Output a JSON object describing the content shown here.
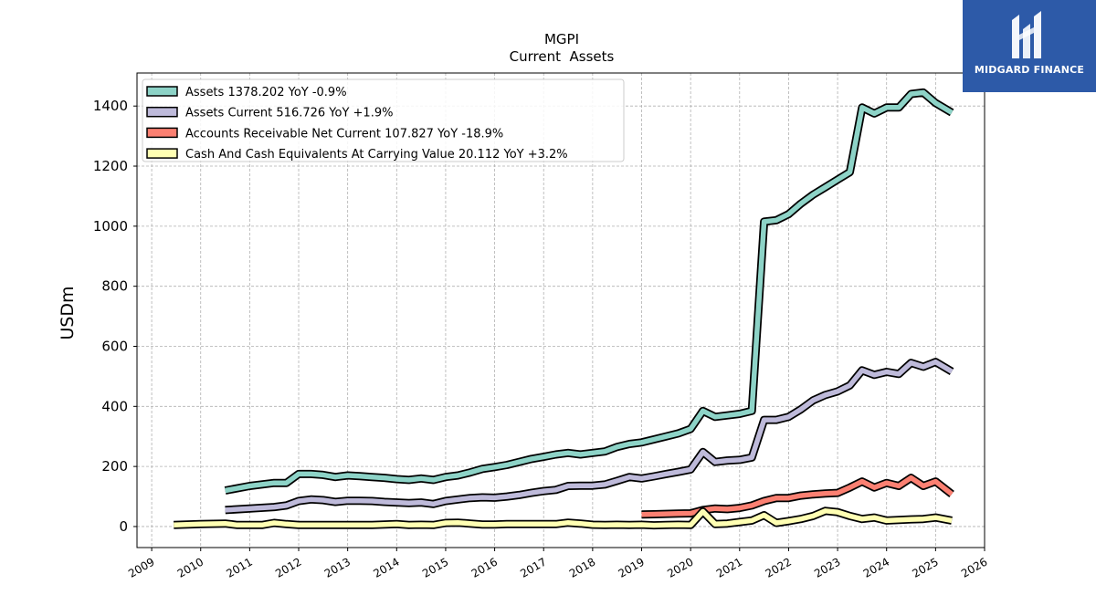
{
  "brand": {
    "name": "MIDGARD FINANCE",
    "color": "#2d5aa8",
    "icon": "midgard-logo-icon"
  },
  "chart_data": {
    "type": "line",
    "title": "MGPI",
    "subtitle": "Current  Assets",
    "xlabel": "",
    "ylabel": "USDm",
    "xlim": [
      2008.7,
      2026.0
    ],
    "ylim": [
      -70,
      1510
    ],
    "x_ticks": [
      "2009",
      "2010",
      "2011",
      "2012",
      "2013",
      "2014",
      "2015",
      "2016",
      "2017",
      "2018",
      "2019",
      "2020",
      "2021",
      "2022",
      "2023",
      "2024",
      "2025",
      "2026"
    ],
    "y_ticks": [
      0,
      200,
      400,
      600,
      800,
      1000,
      1200,
      1400
    ],
    "grid": true,
    "legend_position": "top-left",
    "series": [
      {
        "name": "Assets  1378.202 YoY -0.9%",
        "color": "#8dd3c7",
        "x": [
          2010.5,
          2011.0,
          2011.5,
          2011.75,
          2012.0,
          2012.25,
          2012.5,
          2012.75,
          2013.0,
          2013.25,
          2013.5,
          2013.75,
          2014.0,
          2014.25,
          2014.5,
          2014.75,
          2015.0,
          2015.25,
          2015.5,
          2015.75,
          2016.0,
          2016.25,
          2016.5,
          2016.75,
          2017.0,
          2017.25,
          2017.5,
          2017.75,
          2018.0,
          2018.25,
          2018.5,
          2018.75,
          2019.0,
          2019.25,
          2019.5,
          2019.75,
          2020.0,
          2020.25,
          2020.5,
          2020.75,
          2021.0,
          2021.25,
          2021.5,
          2021.75,
          2022.0,
          2022.25,
          2022.5,
          2022.75,
          2023.0,
          2023.25,
          2023.5,
          2023.75,
          2024.0,
          2024.25,
          2024.5,
          2024.75,
          2025.0,
          2025.33
        ],
        "y": [
          120,
          135,
          145,
          145,
          175,
          175,
          172,
          165,
          170,
          168,
          165,
          162,
          158,
          155,
          160,
          155,
          165,
          170,
          180,
          192,
          198,
          205,
          215,
          225,
          232,
          240,
          245,
          240,
          245,
          250,
          265,
          275,
          280,
          290,
          300,
          310,
          325,
          385,
          365,
          370,
          375,
          385,
          1015,
          1020,
          1040,
          1075,
          1105,
          1130,
          1155,
          1180,
          1395,
          1375,
          1395,
          1395,
          1440,
          1445,
          1410,
          1378
        ]
      },
      {
        "name": "Assets Current  516.726 YoY +1.9%",
        "color": "#bebada",
        "x": [
          2010.5,
          2011.0,
          2011.5,
          2011.75,
          2012.0,
          2012.25,
          2012.5,
          2012.75,
          2013.0,
          2013.25,
          2013.5,
          2013.75,
          2014.0,
          2014.25,
          2014.5,
          2014.75,
          2015.0,
          2015.25,
          2015.5,
          2015.75,
          2016.0,
          2016.25,
          2016.5,
          2016.75,
          2017.0,
          2017.25,
          2017.5,
          2017.75,
          2018.0,
          2018.25,
          2018.5,
          2018.75,
          2019.0,
          2019.25,
          2019.5,
          2019.75,
          2020.0,
          2020.25,
          2020.5,
          2020.75,
          2021.0,
          2021.25,
          2021.5,
          2021.75,
          2022.0,
          2022.25,
          2022.5,
          2022.75,
          2023.0,
          2023.25,
          2023.5,
          2023.75,
          2024.0,
          2024.25,
          2024.5,
          2024.75,
          2025.0,
          2025.33
        ],
        "y": [
          55,
          60,
          65,
          70,
          85,
          90,
          88,
          82,
          86,
          86,
          85,
          82,
          80,
          78,
          80,
          75,
          85,
          90,
          95,
          97,
          96,
          100,
          105,
          112,
          118,
          122,
          135,
          136,
          136,
          140,
          152,
          165,
          160,
          167,
          175,
          182,
          190,
          248,
          215,
          220,
          222,
          230,
          355,
          355,
          365,
          390,
          420,
          438,
          450,
          470,
          520,
          505,
          515,
          508,
          545,
          532,
          548,
          516
        ]
      },
      {
        "name": "Accounts Receivable Net Current  107.827 YoY -18.9%",
        "color": "#fb8072",
        "x": [
          2019.0,
          2019.25,
          2019.5,
          2019.75,
          2020.0,
          2020.25,
          2020.5,
          2020.75,
          2021.0,
          2021.25,
          2021.5,
          2021.75,
          2022.0,
          2022.25,
          2022.5,
          2022.75,
          2023.0,
          2023.25,
          2023.5,
          2023.75,
          2024.0,
          2024.25,
          2024.5,
          2024.75,
          2025.0,
          2025.33
        ],
        "y": [
          40,
          41,
          42,
          43,
          44,
          55,
          60,
          58,
          62,
          70,
          85,
          95,
          95,
          103,
          107,
          110,
          112,
          130,
          150,
          130,
          145,
          135,
          162,
          135,
          150,
          108
        ]
      },
      {
        "name": "Cash And Cash Equivalents At Carrying Value  20.112 YoY +3.2%",
        "color": "#ffffb3",
        "x": [
          2009.45,
          2010.0,
          2010.5,
          2010.75,
          2011.0,
          2011.25,
          2011.5,
          2011.75,
          2012.0,
          2012.5,
          2013.0,
          2013.5,
          2014.0,
          2014.25,
          2014.5,
          2014.75,
          2015.0,
          2015.25,
          2015.5,
          2015.75,
          2016.0,
          2016.25,
          2016.5,
          2016.75,
          2017.0,
          2017.25,
          2017.5,
          2017.75,
          2018.0,
          2018.25,
          2018.5,
          2018.75,
          2019.0,
          2019.25,
          2019.5,
          2019.75,
          2020.0,
          2020.25,
          2020.5,
          2020.75,
          2021.0,
          2021.25,
          2021.5,
          2021.75,
          2022.0,
          2022.25,
          2022.5,
          2022.75,
          2023.0,
          2023.25,
          2023.5,
          2023.75,
          2024.0,
          2024.25,
          2024.5,
          2024.75,
          2025.0,
          2025.33
        ],
        "y": [
          5,
          8,
          10,
          5,
          5,
          5,
          12,
          8,
          5,
          5,
          5,
          5,
          8,
          5,
          6,
          5,
          12,
          13,
          10,
          7,
          7,
          8,
          8,
          8,
          8,
          8,
          13,
          10,
          6,
          5,
          6,
          5,
          6,
          4,
          5,
          6,
          5,
          50,
          8,
          10,
          15,
          20,
          38,
          12,
          18,
          25,
          35,
          52,
          48,
          35,
          25,
          30,
          20,
          22,
          24,
          25,
          30,
          20
        ]
      }
    ]
  }
}
